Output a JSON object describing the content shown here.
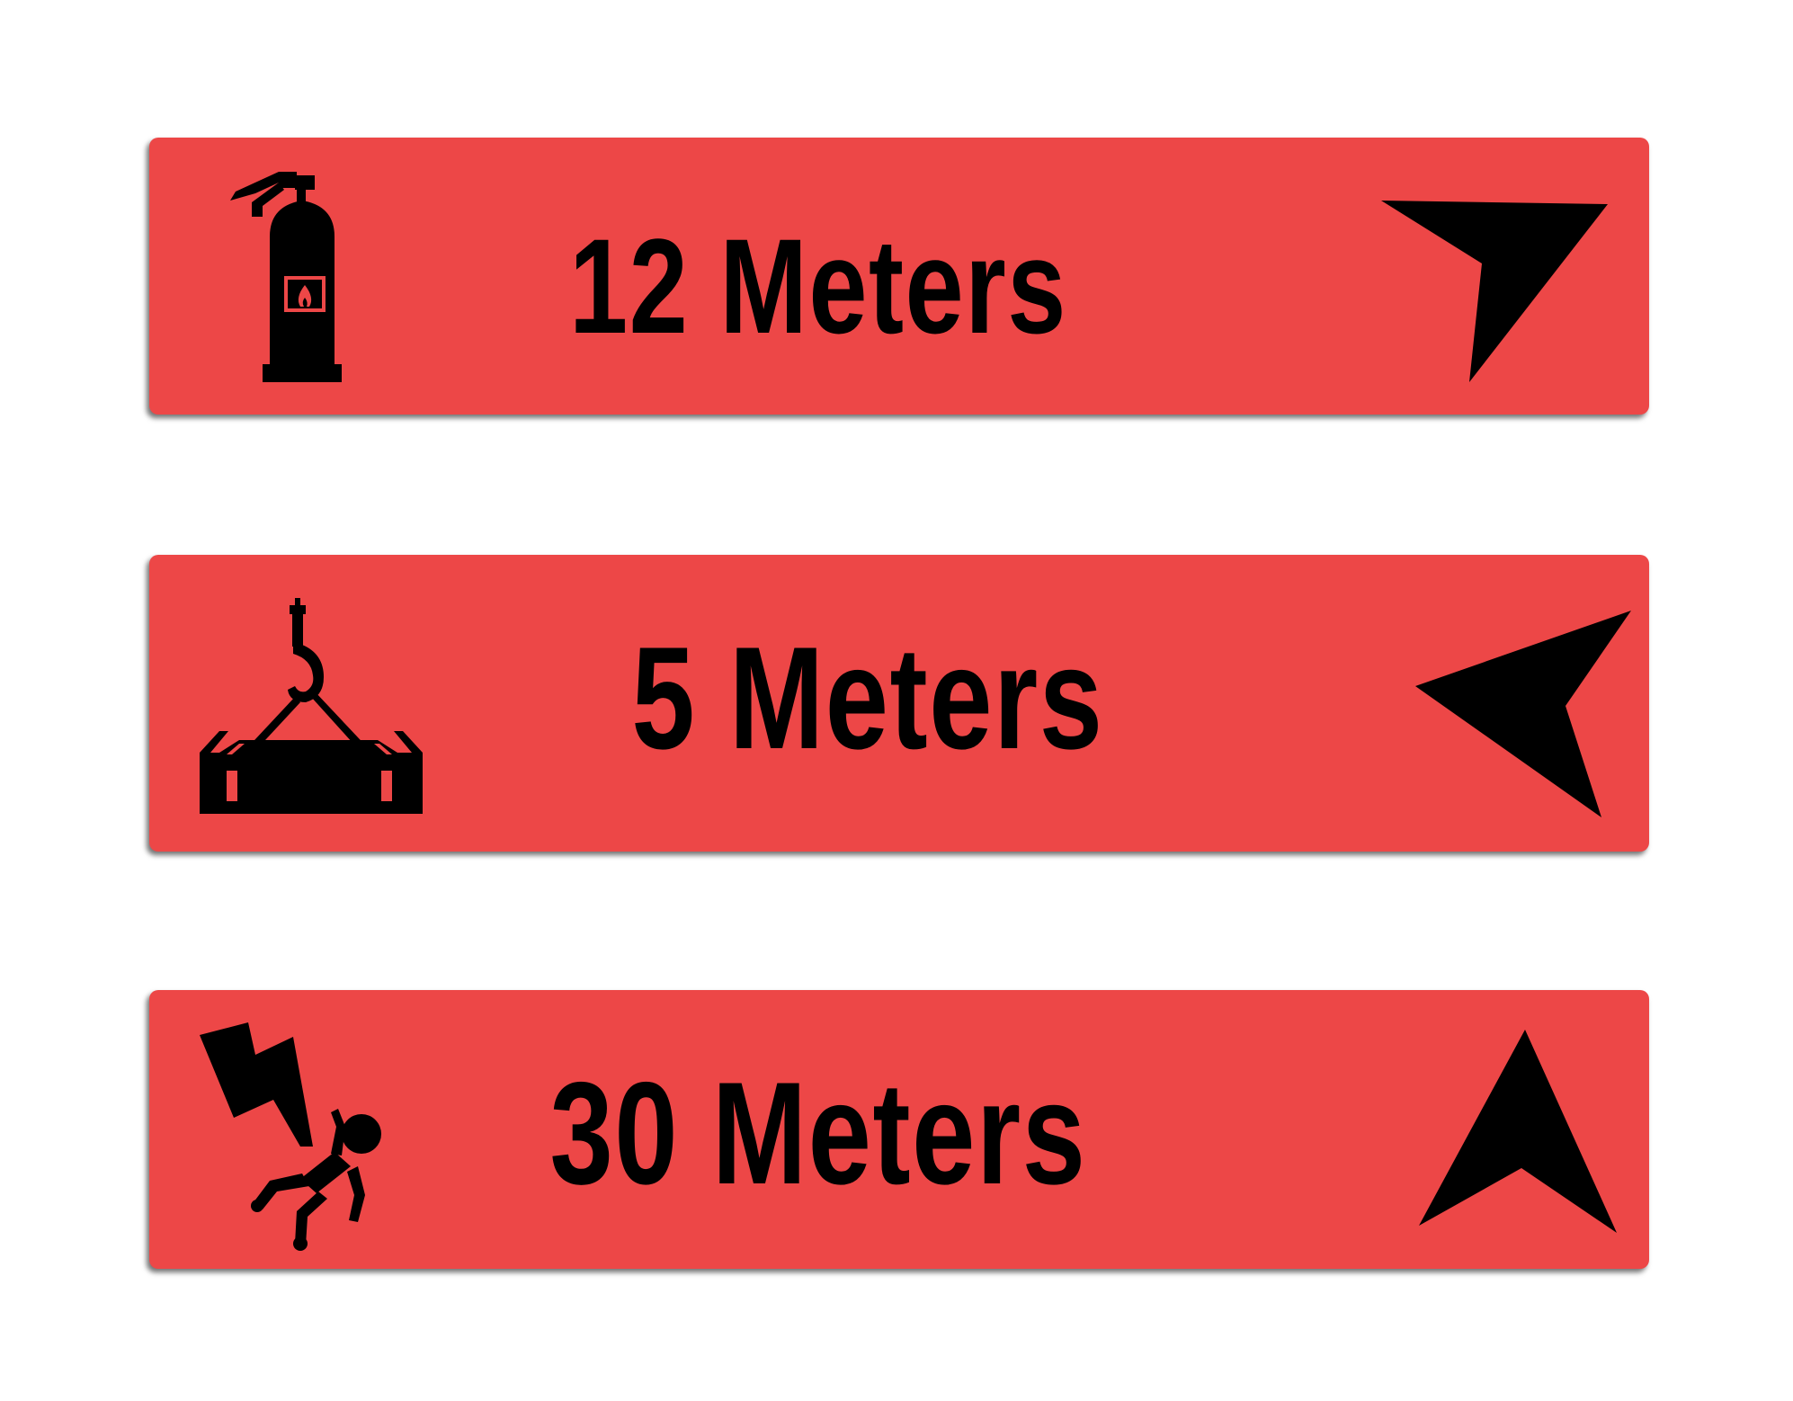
{
  "colors": {
    "sign_background": "#ed4747",
    "foreground": "#000000",
    "page_background": "#ffffff"
  },
  "signs": [
    {
      "label": "12 Meters",
      "icon": "fire-extinguisher-icon",
      "arrow": "arrow-up-right-icon"
    },
    {
      "label": "5 Meters",
      "icon": "crane-load-icon",
      "arrow": "arrow-left-icon"
    },
    {
      "label": "30 Meters",
      "icon": "electric-shock-icon",
      "arrow": "arrow-up-icon"
    }
  ]
}
